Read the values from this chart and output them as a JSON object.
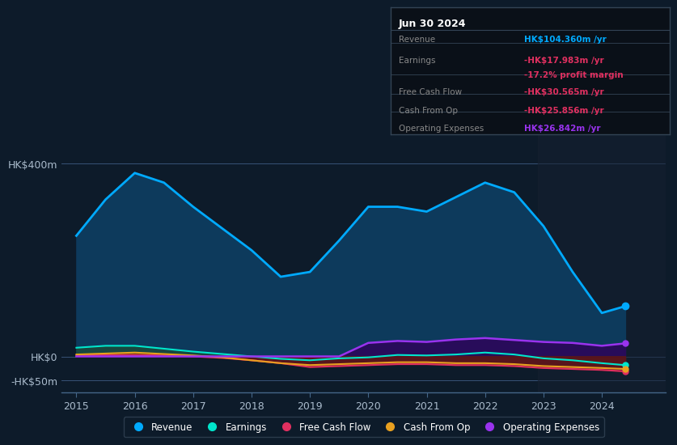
{
  "background_color": "#0d1b2a",
  "plot_bg_color": "#0d1b2a",
  "ylabel_top": "HK$400m",
  "ylabel_zero": "HK$0",
  "ylabel_neg": "-HK$50m",
  "x_years": [
    2015.0,
    2015.5,
    2016.0,
    2016.5,
    2017.0,
    2017.5,
    2018.0,
    2018.5,
    2019.0,
    2019.5,
    2020.0,
    2020.5,
    2021.0,
    2021.5,
    2022.0,
    2022.5,
    2023.0,
    2023.5,
    2024.0,
    2024.4
  ],
  "revenue": [
    250,
    325,
    380,
    360,
    310,
    265,
    220,
    165,
    175,
    240,
    310,
    310,
    300,
    330,
    360,
    340,
    270,
    175,
    90,
    104
  ],
  "earnings": [
    18,
    22,
    22,
    16,
    10,
    5,
    0,
    -5,
    -8,
    -4,
    -2,
    3,
    2,
    4,
    8,
    4,
    -4,
    -8,
    -14,
    -18
  ],
  "free_cash_flow": [
    2,
    3,
    3,
    2,
    0,
    -3,
    -8,
    -14,
    -22,
    -20,
    -18,
    -16,
    -16,
    -18,
    -18,
    -20,
    -24,
    -26,
    -28,
    -31
  ],
  "cash_from_op": [
    4,
    6,
    8,
    5,
    2,
    -2,
    -8,
    -14,
    -18,
    -16,
    -14,
    -12,
    -12,
    -14,
    -14,
    -16,
    -20,
    -22,
    -24,
    -26
  ],
  "operating_expenses": [
    0,
    0,
    0,
    0,
    0,
    0,
    0,
    0,
    0,
    0,
    28,
    32,
    30,
    35,
    38,
    34,
    30,
    28,
    22,
    27
  ],
  "revenue_color": "#00aaff",
  "earnings_color": "#00e5cc",
  "fcf_color": "#e03060",
  "cashop_color": "#e8a020",
  "opex_color": "#9933ee",
  "revenue_fill": "#0d3a5c",
  "earnings_fill": "#1a4a3a",
  "fcf_fill": "#5a1020",
  "cashop_fill": "#5a3800",
  "opex_fill": "#2a0a5a",
  "legend_items": [
    "Revenue",
    "Earnings",
    "Free Cash Flow",
    "Cash From Op",
    "Operating Expenses"
  ],
  "legend_colors": [
    "#00aaff",
    "#00e5cc",
    "#e03060",
    "#e8a020",
    "#9933ee"
  ],
  "info_box": {
    "title": "Jun 30 2024",
    "rows": [
      {
        "label": "Revenue",
        "value": "HK$104.360m /yr",
        "value_color": "#00aaff"
      },
      {
        "label": "Earnings",
        "value": "-HK$17.983m /yr",
        "value_color": "#e03060"
      },
      {
        "label": "",
        "value": "-17.2% profit margin",
        "value_color": "#e03060"
      },
      {
        "label": "Free Cash Flow",
        "value": "-HK$30.565m /yr",
        "value_color": "#e03060"
      },
      {
        "label": "Cash From Op",
        "value": "-HK$25.856m /yr",
        "value_color": "#e03060"
      },
      {
        "label": "Operating Expenses",
        "value": "HK$26.842m /yr",
        "value_color": "#9933ee"
      }
    ]
  },
  "ylim": [
    -75,
    460
  ],
  "xlim": [
    2014.75,
    2025.1
  ],
  "hlines": [
    400,
    0,
    -50
  ],
  "xtick_years": [
    2015,
    2016,
    2017,
    2018,
    2019,
    2020,
    2021,
    2022,
    2023,
    2024
  ],
  "shaded_start": 2022.9
}
